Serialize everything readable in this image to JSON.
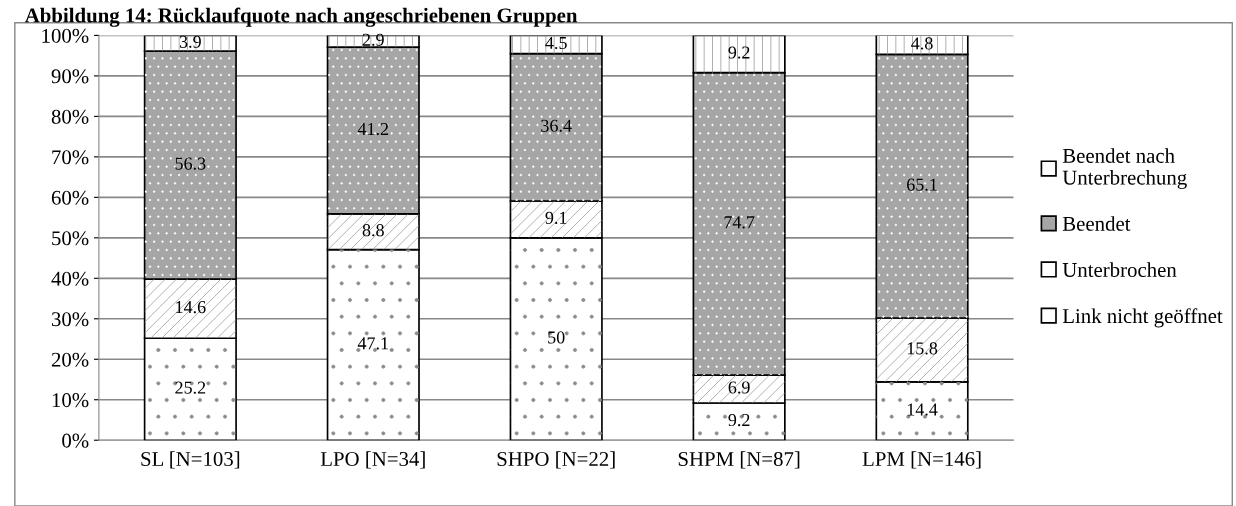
{
  "chart_data": {
    "type": "bar",
    "title": "Abbildung 14: Rücklaufquote nach angeschriebenen Gruppen",
    "stacked": true,
    "categories": [
      "SL [N=103]",
      "LPO [N=34]",
      "SHPO [N=22]",
      "SHPM [N=87]",
      "LPM [N=146]"
    ],
    "series": [
      {
        "name": "Link nicht geöffnet",
        "color": "#ffffff",
        "values": [
          25.2,
          47.1,
          50,
          9.2,
          14.4
        ]
      },
      {
        "name": "Unterbrochen",
        "color": "#ffffff",
        "values": [
          14.6,
          8.8,
          9.1,
          6.9,
          15.8
        ]
      },
      {
        "name": "Beendet",
        "color": "#a6a6a6",
        "values": [
          56.3,
          41.2,
          36.4,
          74.7,
          65.1
        ]
      },
      {
        "name": "Beendet nach Unterbrechung",
        "color": "#ffffff",
        "values": [
          3.9,
          2.9,
          4.5,
          9.2,
          4.8
        ]
      }
    ],
    "ylim": [
      0,
      100
    ],
    "yticks": [
      {
        "value": 0,
        "label": "0%"
      },
      {
        "value": 10,
        "label": "10%"
      },
      {
        "value": 20,
        "label": "20%"
      },
      {
        "value": 30,
        "label": "30%"
      },
      {
        "value": 40,
        "label": "40%"
      },
      {
        "value": 50,
        "label": "50%"
      },
      {
        "value": 60,
        "label": "60%"
      },
      {
        "value": 70,
        "label": "70%"
      },
      {
        "value": 80,
        "label": "80%"
      },
      {
        "value": 90,
        "label": "90%"
      },
      {
        "value": 100,
        "label": "100%"
      }
    ],
    "grid": "y",
    "legend": "right",
    "data_labels": true
  }
}
